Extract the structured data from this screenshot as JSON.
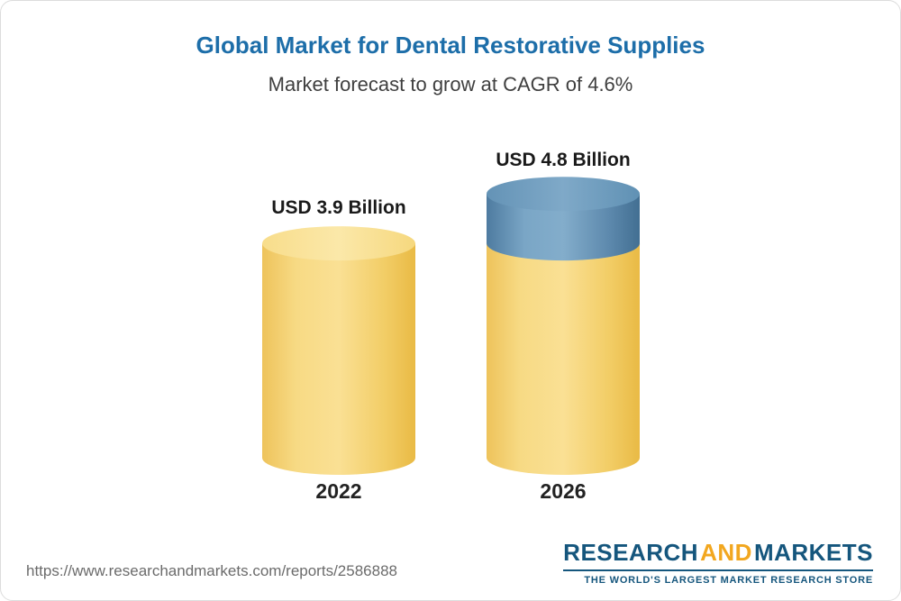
{
  "chart_data": {
    "type": "bar",
    "subtype": "3d-cylinder",
    "title": "Global Market for Dental Restorative Supplies",
    "subtitle": "Market forecast to grow at CAGR of 4.6%",
    "categories": [
      "2022",
      "2026"
    ],
    "values": [
      3.9,
      4.8
    ],
    "value_labels": [
      "USD 3.9 Billion",
      "USD 4.8 Billion"
    ],
    "unit": "USD Billion",
    "cagr_percent": 4.6,
    "ylim": [
      0,
      5
    ],
    "grid": false,
    "legend": false,
    "colors": {
      "title": "#1d6ea9",
      "bar_base": "#f6d170",
      "bar_growth": "#6c99ba"
    }
  },
  "footer": {
    "url": "https://www.researchandmarkets.com/reports/2586888",
    "logo": {
      "part1": "RESEARCH",
      "part2": "AND",
      "part3": "MARKETS",
      "tagline": "THE WORLD'S LARGEST MARKET RESEARCH STORE"
    }
  }
}
